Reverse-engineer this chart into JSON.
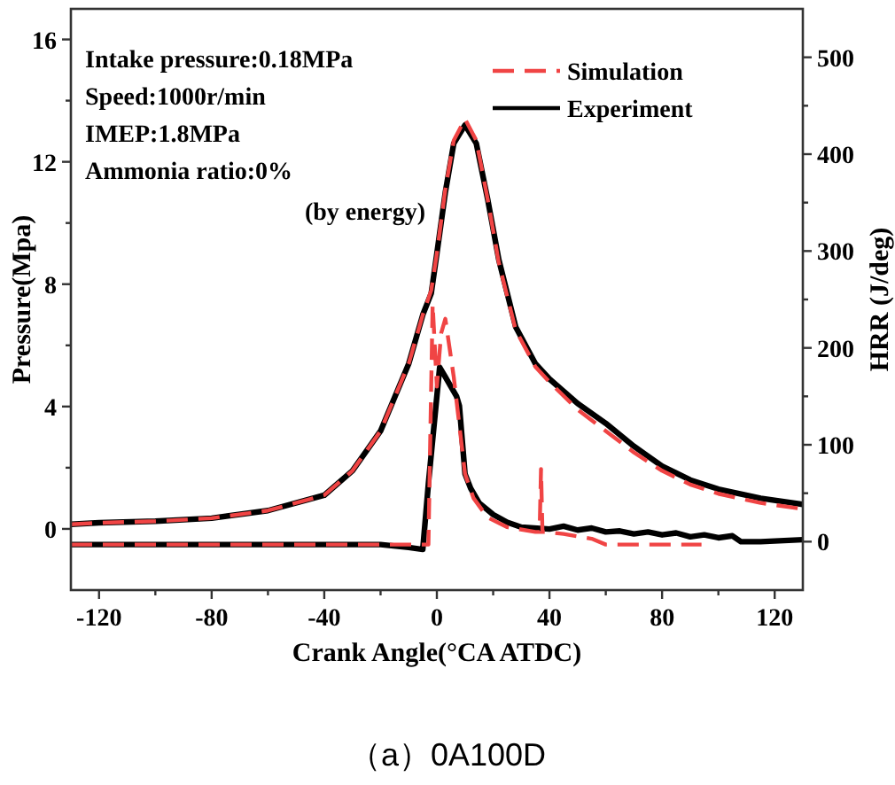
{
  "chart_data": {
    "type": "line",
    "xlabel": "Crank Angle(°CA ATDC)",
    "ylabel": "Pressure(Mpa)",
    "y2label": "HRR (J/deg)",
    "xlim": [
      -130,
      130
    ],
    "xticks": [
      -120,
      {
        "value": -100,
        "label": null
      },
      -80,
      {
        "value": -60,
        "label": null
      },
      -40,
      {
        "value": -20,
        "label": null
      },
      0,
      {
        "value": 20,
        "label": null
      },
      40,
      {
        "value": 60,
        "label": null
      },
      80,
      {
        "value": 100,
        "label": null
      },
      120
    ],
    "ylim": [
      -2,
      17
    ],
    "yticks": [
      0,
      {
        "value": 2,
        "label": null
      },
      4,
      {
        "value": 6,
        "label": null
      },
      8,
      {
        "value": 10,
        "label": null
      },
      12,
      {
        "value": 14,
        "label": null
      },
      16
    ],
    "y2lim": [
      -50,
      550
    ],
    "y2ticks": [
      0,
      {
        "value": 50,
        "label": null
      },
      100,
      {
        "value": 150,
        "label": null
      },
      200,
      {
        "value": 250,
        "label": null
      },
      300,
      {
        "value": 350,
        "label": null
      },
      400,
      {
        "value": 450,
        "label": null
      },
      500
    ],
    "legend": "top right",
    "grid": false,
    "annotations": [
      "Intake pressure:0.18MPa",
      "Speed:1000r/min",
      "IMEP:1.8MPa",
      "Ammonia ratio:0%",
      "(by energy)",
      "（a）0A100D"
    ],
    "series": [
      {
        "name": "Simulation",
        "color": "#f04444",
        "line_style": "dashed",
        "x": [
          -130,
          -120,
          -100,
          -80,
          -60,
          -40,
          -30,
          -20,
          -10,
          -5,
          -2,
          0,
          3,
          6,
          10,
          14,
          18,
          22,
          28,
          35,
          40,
          50,
          60,
          70,
          80,
          90,
          100,
          115,
          130
        ],
        "values": [
          0.15,
          0.2,
          0.25,
          0.35,
          0.6,
          1.1,
          1.9,
          3.2,
          5.4,
          7.0,
          7.8,
          9.0,
          11.1,
          12.7,
          13.4,
          12.7,
          10.8,
          8.7,
          6.5,
          5.3,
          4.8,
          3.9,
          3.2,
          2.5,
          1.9,
          1.45,
          1.15,
          0.85,
          0.65
        ]
      },
      {
        "name": "Experiment",
        "color": "#000000",
        "line_style": "solid",
        "x": [
          -130,
          -120,
          -100,
          -80,
          -60,
          -40,
          -30,
          -20,
          -10,
          -5,
          -2,
          0,
          3,
          6,
          10,
          14,
          18,
          22,
          28,
          35,
          40,
          50,
          60,
          70,
          80,
          90,
          100,
          115,
          130
        ],
        "values": [
          0.15,
          0.2,
          0.25,
          0.35,
          0.6,
          1.1,
          1.9,
          3.2,
          5.4,
          7.0,
          7.7,
          9.0,
          11.0,
          12.6,
          13.2,
          12.6,
          10.8,
          8.8,
          6.6,
          5.4,
          4.9,
          4.1,
          3.45,
          2.7,
          2.05,
          1.6,
          1.3,
          1.0,
          0.8
        ]
      },
      {
        "color": "#f04444",
        "line_style": "dashed",
        "axis": "y2",
        "x": [
          -130,
          -20,
          -5,
          -3,
          -1.5,
          0,
          1.5,
          3,
          4.5,
          6,
          8,
          10,
          13,
          18,
          25,
          35,
          36.5,
          37,
          37.5,
          38.5,
          45,
          55,
          60,
          75,
          94
        ],
        "values": [
          -3,
          -3,
          -3,
          -3,
          245,
          160,
          215,
          230,
          200,
          170,
          120,
          70,
          45,
          25,
          15,
          10,
          10,
          75,
          10,
          10,
          8,
          3,
          -3,
          -3,
          -3
        ]
      },
      {
        "color": "#000000",
        "line_style": "solid",
        "axis": "y2",
        "x": [
          -130,
          -20,
          -10,
          -5,
          -3,
          1,
          3,
          5,
          7,
          8,
          10,
          12,
          15,
          20,
          25,
          30,
          40,
          45,
          50,
          55,
          60,
          65,
          70,
          75,
          80,
          85,
          90,
          95,
          100,
          105,
          108,
          115,
          130
        ],
        "values": [
          -3,
          -3,
          -6,
          -8,
          60,
          180,
          170,
          160,
          150,
          140,
          70,
          55,
          40,
          28,
          20,
          15,
          13,
          16,
          12,
          14,
          10,
          11,
          8,
          10,
          7,
          9,
          5,
          7,
          4,
          6,
          0,
          0,
          2
        ]
      }
    ]
  }
}
